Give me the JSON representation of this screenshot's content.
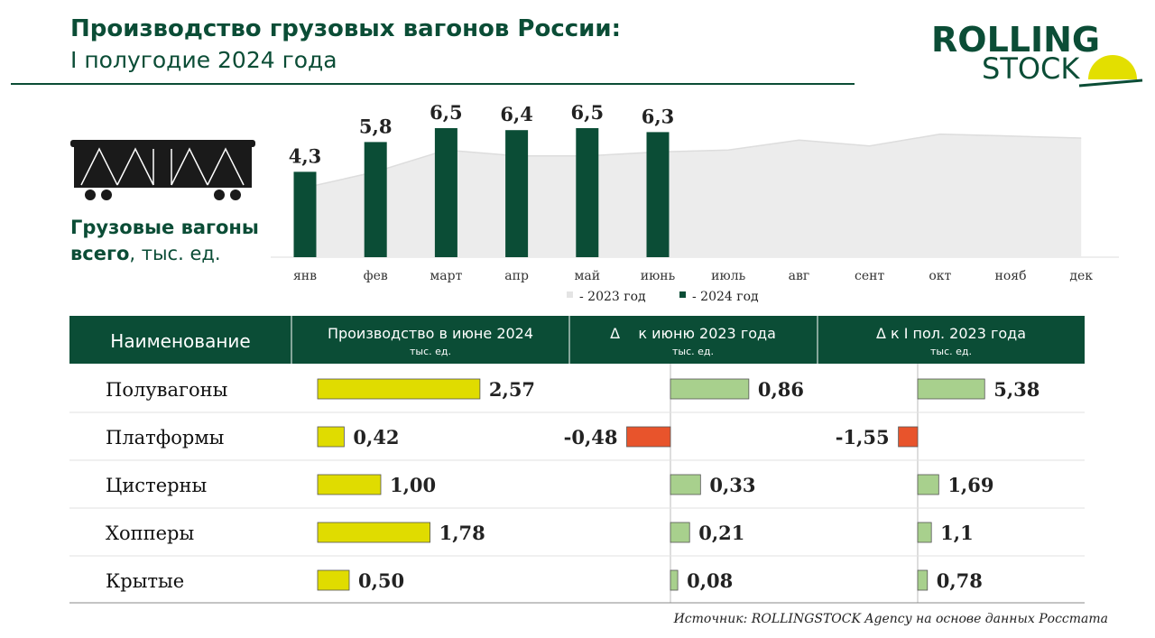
{
  "header": {
    "title": "Производство грузовых вагонов России:",
    "subtitle": "I полугодие 2024 года"
  },
  "logo": {
    "line1": "ROLLING",
    "line2": "STOCK"
  },
  "caption": {
    "line1": "Грузовые вагоны",
    "bold": "всего",
    "rest": ", тыс. ед."
  },
  "chart_data": {
    "type": "bar",
    "categories": [
      "янв",
      "фев",
      "март",
      "апр",
      "май",
      "июнь",
      "июль",
      "авг",
      "сент",
      "окт",
      "нояб",
      "дек"
    ],
    "ylim": [
      0,
      7
    ],
    "series": [
      {
        "name": "- 2023 год",
        "color": "#ececec",
        "type": "area",
        "values": [
          3.5,
          4.3,
          5.4,
          5.1,
          5.1,
          5.3,
          5.4,
          5.9,
          5.6,
          6.2,
          6.1,
          6.0
        ]
      },
      {
        "name": "- 2024 год",
        "color": "#0b4d36",
        "type": "bar",
        "values": [
          4.3,
          5.8,
          6.5,
          6.4,
          6.5,
          6.3,
          null,
          null,
          null,
          null,
          null,
          null
        ],
        "value_labels": [
          "4,3",
          "5,8",
          "6,5",
          "6,4",
          "6,5",
          "6,3",
          null,
          null,
          null,
          null,
          null,
          null
        ]
      }
    ]
  },
  "table": {
    "columns": [
      {
        "title": "Наименование"
      },
      {
        "title": "Производство в июне 2024",
        "unit": "тыс. ед."
      },
      {
        "title": "Δ    к июню 2023 года",
        "unit": "тыс. ед."
      },
      {
        "title": "Δ к I пол. 2023 года",
        "unit": "тыс. ед."
      }
    ],
    "rows": [
      {
        "name": "Полувагоны",
        "values": [
          2.57,
          0.86,
          5.38
        ],
        "value_labels": [
          "2,57",
          "0,86",
          "5,38"
        ]
      },
      {
        "name": "Платформы",
        "values": [
          0.42,
          -0.48,
          -1.55
        ],
        "value_labels": [
          "0,42",
          "-0,48",
          "-1,55"
        ]
      },
      {
        "name": "Цистерны",
        "values": [
          1.0,
          0.33,
          1.69
        ],
        "value_labels": [
          "1,00",
          "0,33",
          "1,69"
        ]
      },
      {
        "name": "Хопперы",
        "values": [
          1.78,
          0.21,
          1.1
        ],
        "value_labels": [
          "1,78",
          "0,21",
          "1,1"
        ]
      },
      {
        "name": "Крытые",
        "values": [
          0.5,
          0.08,
          0.78
        ],
        "value_labels": [
          "0,50",
          "0,08",
          "0,78"
        ]
      }
    ]
  },
  "source": "Источник: ROLLINGSTOCK Agency на основе данных Росстата"
}
